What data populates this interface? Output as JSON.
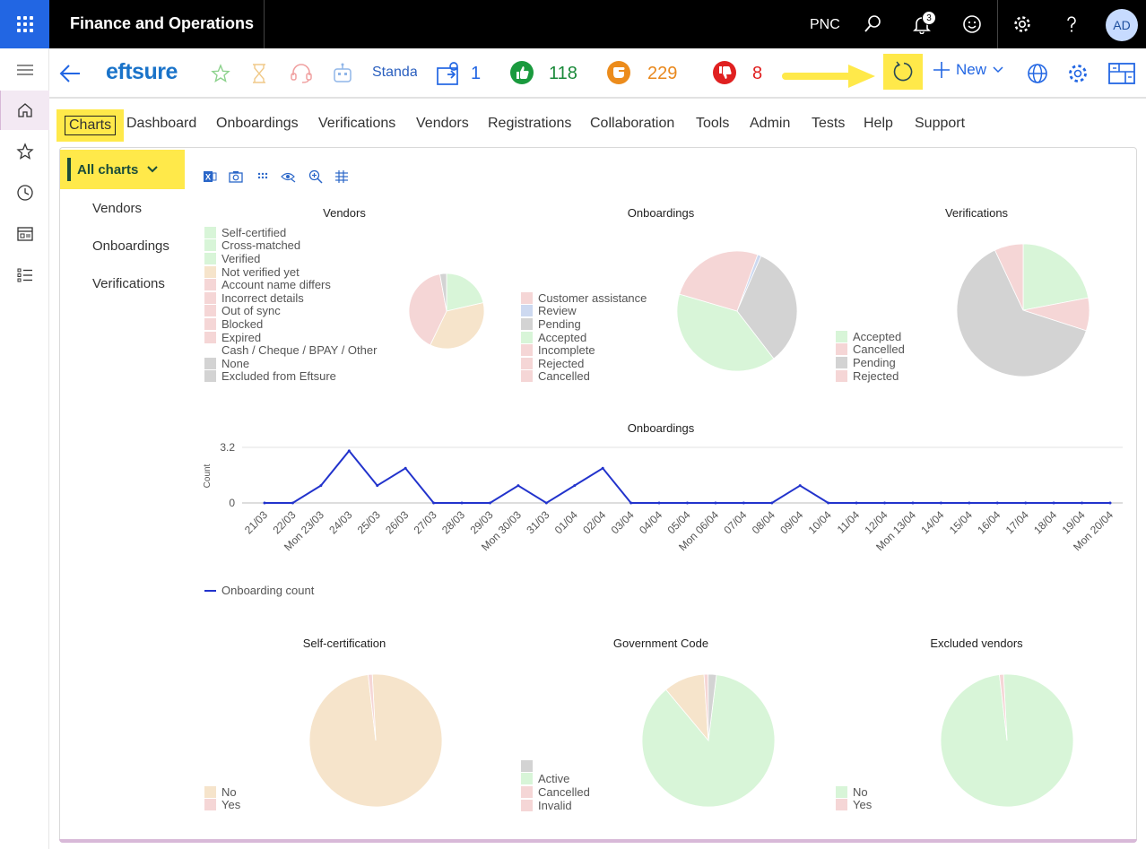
{
  "header": {
    "app_title": "Finance and Operations",
    "company": "PNC",
    "notification_count": "3",
    "avatar_initials": "AD"
  },
  "toolbar": {
    "brand": "eftsure",
    "view_name": "Standard",
    "stats": [
      {
        "name": "assigned",
        "value": "1",
        "color": "#2266e3"
      },
      {
        "name": "approved",
        "value": "118",
        "color": "#1a8a3a"
      },
      {
        "name": "pending",
        "value": "229",
        "color": "#e8881d"
      },
      {
        "name": "rejected",
        "value": "8",
        "color": "#e02020"
      }
    ],
    "new_label": "New"
  },
  "menu": {
    "items": [
      "Charts",
      "Dashboard",
      "Onboardings",
      "Verifications",
      "Vendors",
      "Registrations",
      "Collaboration",
      "Tools",
      "Admin",
      "Tests",
      "Help",
      "Support"
    ]
  },
  "sidebar": {
    "all_charts_label": "All charts",
    "items": [
      "Vendors",
      "Onboardings",
      "Verifications"
    ]
  },
  "colors": {
    "green": "#d8f5d8",
    "pink": "#f5d6d6",
    "peach": "#f6e4cb",
    "grey": "#d3d3d3",
    "blue": "#cdd9f0",
    "line": "#2233cc",
    "highlight": "#ffe94a"
  },
  "chart_data": [
    {
      "type": "pie",
      "title": "Vendors",
      "legend": [
        "Self-certified",
        "Cross-matched",
        "Verified",
        "Not verified yet",
        "Account name differs",
        "Incorrect details",
        "Out of sync",
        "Blocked",
        "Expired",
        "Cash / Cheque / BPAY / Other",
        "None",
        "Excluded from Eftsure"
      ],
      "slices": [
        {
          "label": "Verified",
          "value": 15,
          "color": "#d8f5d8"
        },
        {
          "label": "Not verified yet",
          "value": 25,
          "color": "#f6e4cb"
        },
        {
          "label": "Account name differs",
          "value": 28,
          "color": "#f5d6d6"
        },
        {
          "label": "Excluded from Eftsure",
          "value": 2,
          "color": "#d3d3d3"
        }
      ]
    },
    {
      "type": "pie",
      "title": "Onboardings",
      "legend": [
        "Customer assistance",
        "Review",
        "Pending",
        "Accepted",
        "Incomplete",
        "Rejected",
        "Cancelled"
      ],
      "slices": [
        {
          "label": "Review",
          "value": 1,
          "color": "#cdd9f0"
        },
        {
          "label": "Pending",
          "value": 33,
          "color": "#d3d3d3"
        },
        {
          "label": "Accepted",
          "value": 40,
          "color": "#d8f5d8"
        },
        {
          "label": "Cancelled",
          "value": 26,
          "color": "#f5d6d6"
        }
      ]
    },
    {
      "type": "pie",
      "title": "Verifications",
      "legend": [
        "Accepted",
        "Cancelled",
        "Pending",
        "Rejected"
      ],
      "slices": [
        {
          "label": "Accepted",
          "value": 22,
          "color": "#d8f5d8"
        },
        {
          "label": "Cancelled",
          "value": 8,
          "color": "#f5d6d6"
        },
        {
          "label": "Pending",
          "value": 63,
          "color": "#d3d3d3"
        },
        {
          "label": "Rejected",
          "value": 7,
          "color": "#f5d6d6"
        }
      ]
    },
    {
      "type": "line",
      "title": "Onboardings",
      "ylabel": "Count",
      "yticks": [
        "3.2",
        "0"
      ],
      "ylim": [
        0,
        3.2
      ],
      "x": [
        "21/03",
        "22/03",
        "Mon 23/03",
        "24/03",
        "25/03",
        "26/03",
        "27/03",
        "28/03",
        "29/03",
        "Mon 30/03",
        "31/03",
        "01/04",
        "02/04",
        "03/04",
        "04/04",
        "05/04",
        "Mon 06/04",
        "07/04",
        "08/04",
        "09/04",
        "10/04",
        "11/04",
        "12/04",
        "Mon 13/04",
        "14/04",
        "15/04",
        "16/04",
        "17/04",
        "18/04",
        "19/04",
        "Mon 20/04"
      ],
      "series": [
        {
          "name": "Onboarding count",
          "values": [
            0,
            0,
            1,
            3,
            1,
            2,
            0,
            0,
            0,
            1,
            0,
            1,
            2,
            0,
            0,
            0,
            0,
            0,
            0,
            1,
            0,
            0,
            0,
            0,
            0,
            0,
            0,
            0,
            0,
            0,
            0
          ]
        }
      ]
    },
    {
      "type": "pie",
      "title": "Self-certification",
      "legend": [
        "No",
        "Yes"
      ],
      "slices": [
        {
          "label": "No",
          "value": 99,
          "color": "#f6e4cb"
        },
        {
          "label": "Yes",
          "value": 1,
          "color": "#f5d6d6"
        }
      ]
    },
    {
      "type": "pie",
      "title": "Government Code",
      "legend": [
        "",
        "Active",
        "Cancelled",
        "Invalid"
      ],
      "slices": [
        {
          "label": "Active",
          "value": 87,
          "color": "#d8f5d8"
        },
        {
          "label": "Cancelled",
          "value": 10,
          "color": "#f6e4cb"
        },
        {
          "label": "Invalid",
          "value": 1,
          "color": "#f5d6d6"
        },
        {
          "label": "",
          "value": 2,
          "color": "#d3d3d3"
        }
      ]
    },
    {
      "type": "pie",
      "title": "Excluded vendors",
      "legend": [
        "No",
        "Yes"
      ],
      "slices": [
        {
          "label": "No",
          "value": 99,
          "color": "#d8f5d8"
        },
        {
          "label": "Yes",
          "value": 1,
          "color": "#f5d6d6"
        }
      ]
    }
  ]
}
